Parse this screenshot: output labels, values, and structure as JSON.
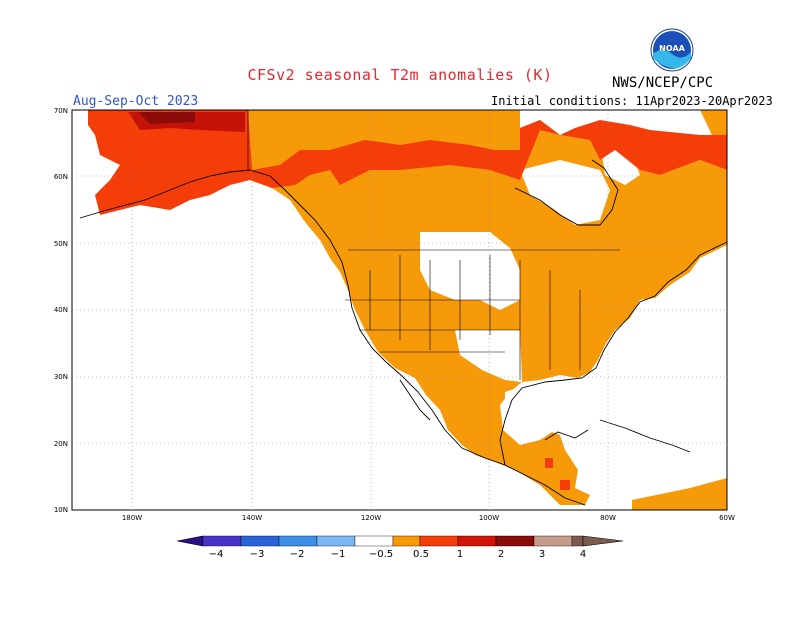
{
  "title": "CFSv2 seasonal T2m anomalies (K)",
  "agency": "NWS/NCEP/CPC",
  "season": "Aug-Sep-Oct 2023",
  "initial_conditions": "Initial conditions: 11Apr2023-20Apr2023",
  "logo": {
    "icon": "noaa-logo-icon",
    "text": "NOAA"
  },
  "map": {
    "lon_range": [
      -190,
      -60
    ],
    "lat_range": [
      10,
      70
    ],
    "lat_labels": [
      "10N",
      "20N",
      "30N",
      "40N",
      "50N",
      "60N",
      "70N"
    ],
    "lon_labels": [
      "180W",
      "140W",
      "120W",
      "100W",
      "80W",
      "60W"
    ]
  },
  "colorbar": {
    "colors": [
      "#2a0e8a",
      "#4634c8",
      "#2a62d8",
      "#3f8ee6",
      "#7cb6f3",
      "#ffffff",
      "#f79a0a",
      "#f53d0a",
      "#d21408",
      "#8b0a0a",
      "#c69c8b",
      "#7d5a4e"
    ],
    "labels": [
      "−4",
      "−3",
      "−2",
      "−1",
      "−0.5",
      "0.5",
      "1",
      "2",
      "3",
      "4"
    ]
  },
  "colors": {
    "anomaly_05_1": "#f79a0a",
    "anomaly_1_2": "#f53d0a",
    "anomaly_2_3": "#d21408",
    "anomaly_3_4": "#8b0a0a",
    "ocean": "#ffffff"
  }
}
